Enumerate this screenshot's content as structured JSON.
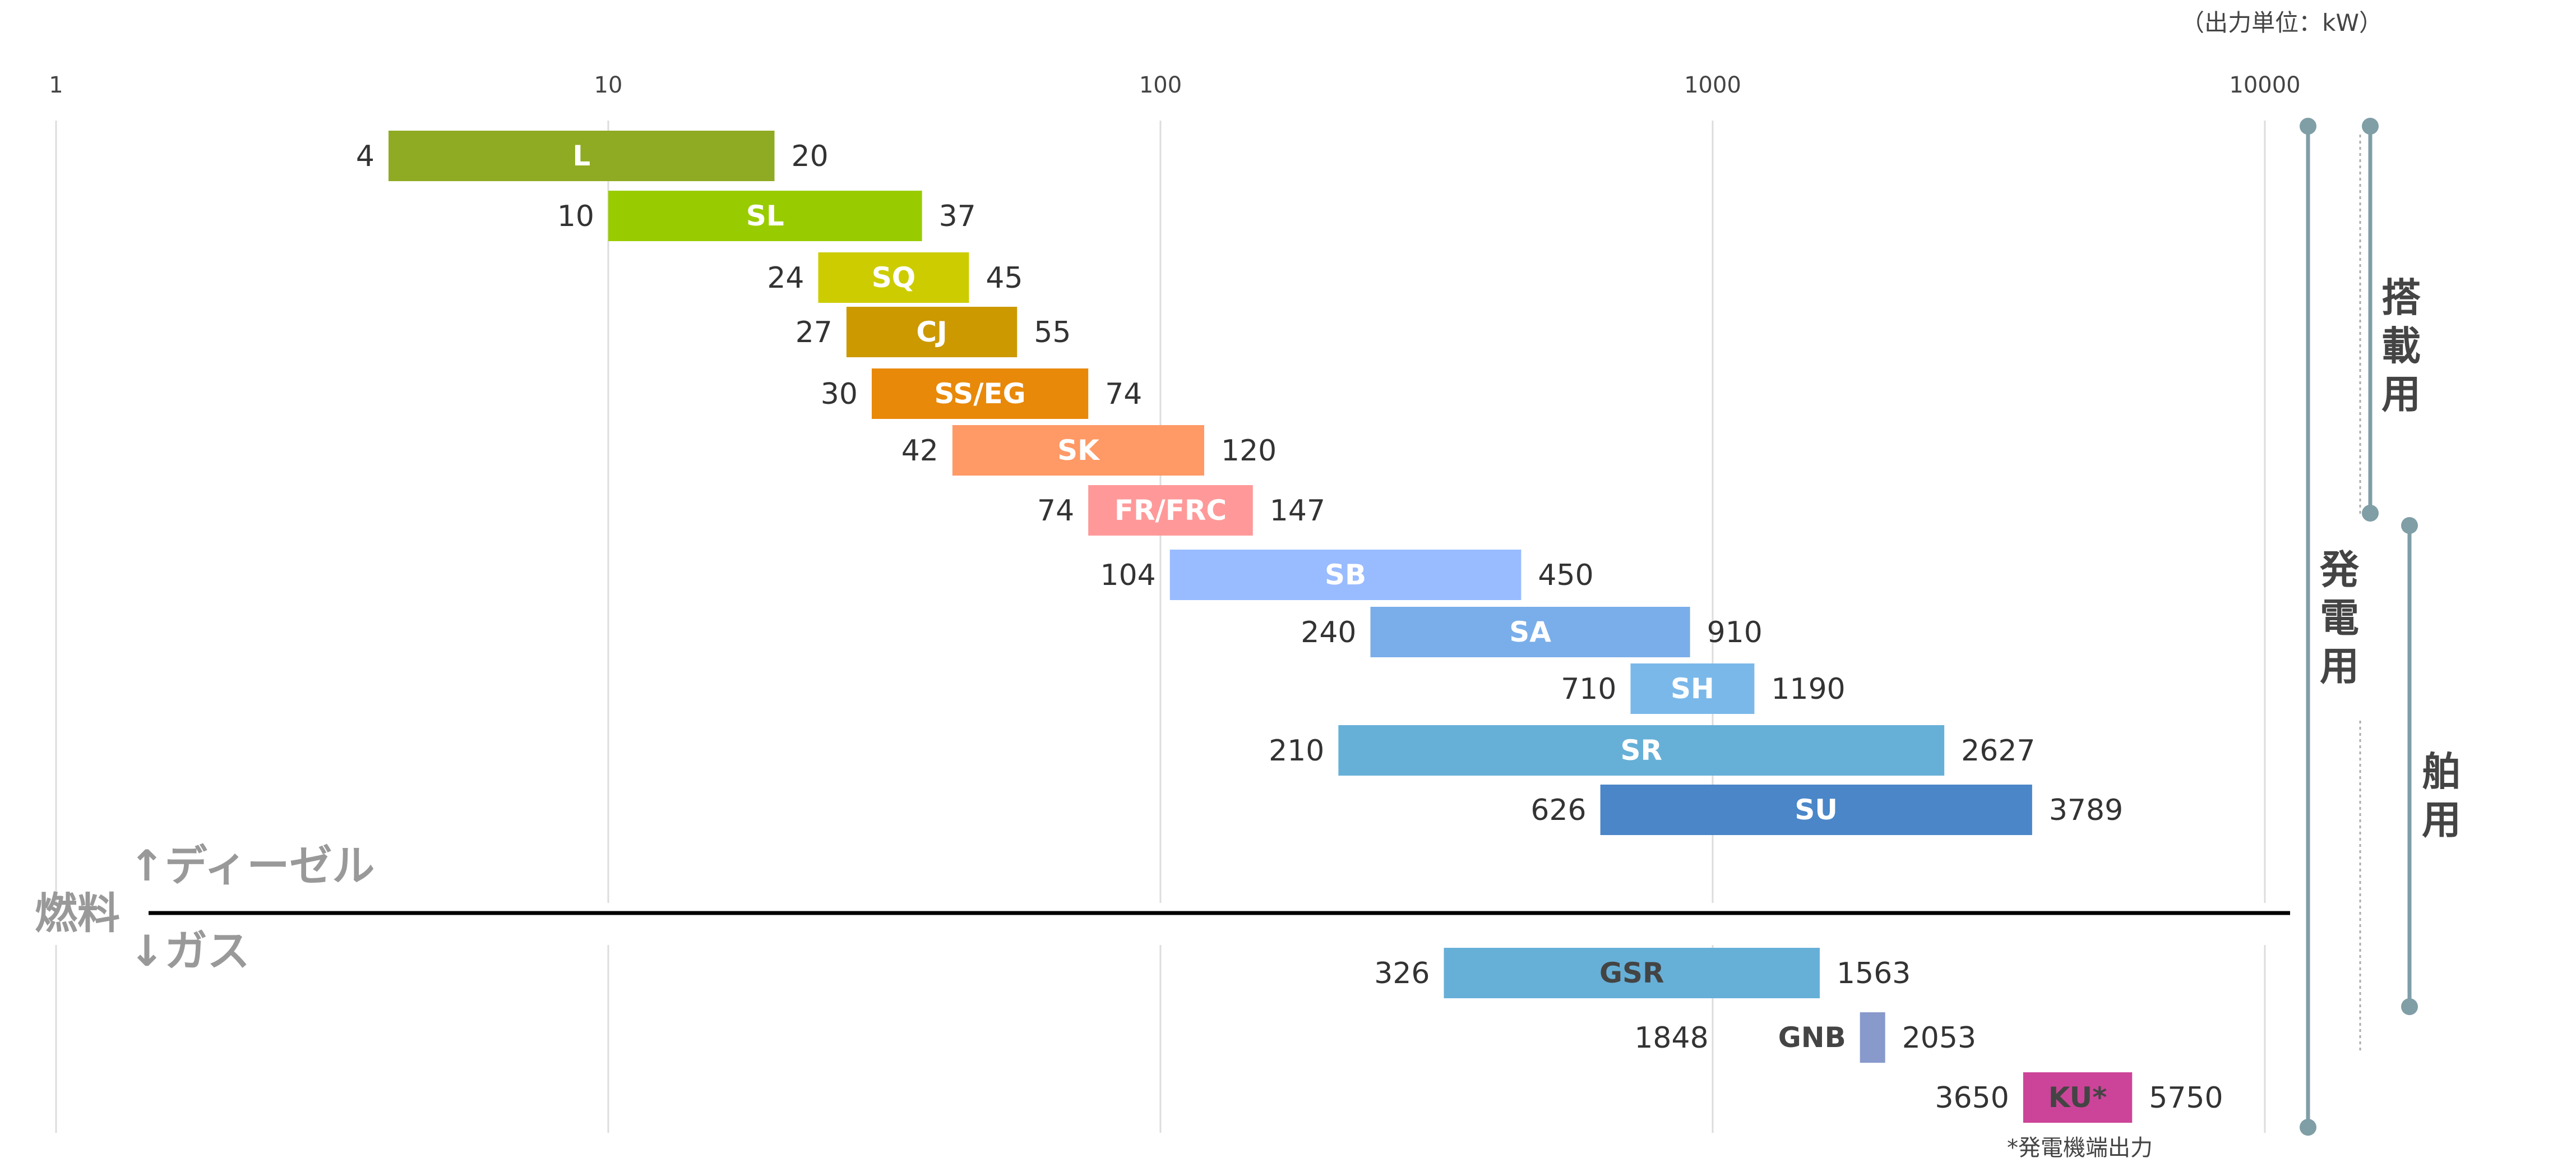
{
  "unit_label": "（出力単位：kW）",
  "footnote": "*発電機端出力",
  "fuel": {
    "title": "燃料",
    "diesel_label": "↑ディーゼル",
    "gas_label": "↓ガス"
  },
  "ranges": {
    "onboard": "搭載用",
    "generator": "発電用",
    "marine": "舶用"
  },
  "colors": {
    "grid": "#dddddd",
    "divider": "#000000",
    "range_line": "#7f9ea6"
  },
  "chart_data": {
    "type": "bar",
    "orientation": "horizontal-range",
    "x_scale": "log",
    "xlim": [
      1,
      10000
    ],
    "x_ticks": [
      "1",
      "10",
      "100",
      "1000",
      "10000"
    ],
    "grid": true,
    "series": [
      {
        "name": "ディーゼル",
        "bars": [
          {
            "label": "L",
            "min": 4,
            "max": 20,
            "color": "#8fab23",
            "dark": false
          },
          {
            "label": "SL",
            "min": 10,
            "max": 37,
            "color": "#99cc00",
            "dark": false
          },
          {
            "label": "SQ",
            "min": 24,
            "max": 45,
            "color": "#cccc00",
            "dark": false
          },
          {
            "label": "CJ",
            "min": 27,
            "max": 55,
            "color": "#cc9900",
            "dark": false
          },
          {
            "label": "SS/EG",
            "min": 30,
            "max": 74,
            "color": "#e8890a",
            "dark": false
          },
          {
            "label": "SK",
            "min": 42,
            "max": 120,
            "color": "#ff9966",
            "dark": false
          },
          {
            "label": "FR/FRC",
            "min": 74,
            "max": 147,
            "color": "#ff9999",
            "dark": false
          },
          {
            "label": "SB",
            "min": 104,
            "max": 450,
            "color": "#99bbff",
            "dark": false
          },
          {
            "label": "SA",
            "min": 240,
            "max": 910,
            "color": "#7aaeea",
            "dark": false
          },
          {
            "label": "SH",
            "min": 710,
            "max": 1190,
            "color": "#7ab8ea",
            "dark": false
          },
          {
            "label": "SR",
            "min": 210,
            "max": 2627,
            "color": "#66b0d8",
            "dark": false
          },
          {
            "label": "SU",
            "min": 626,
            "max": 3789,
            "color": "#4a86c8",
            "dark": false
          }
        ]
      },
      {
        "name": "ガス",
        "bars": [
          {
            "label": "GSR",
            "min": 326,
            "max": 1563,
            "color": "#66b0d8",
            "dark": true
          },
          {
            "label": "GNB",
            "min": 1848,
            "max": 2053,
            "color": "#8899cc",
            "dark": true
          },
          {
            "label": "KU*",
            "min": 3650,
            "max": 5750,
            "color": "#cc4499",
            "dark": true
          }
        ]
      }
    ]
  }
}
